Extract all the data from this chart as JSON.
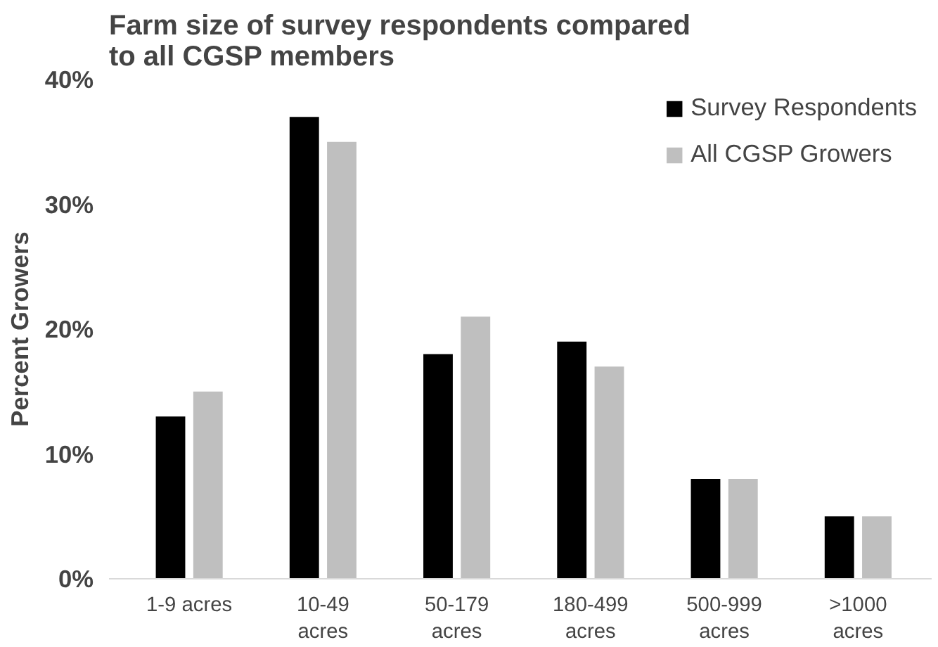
{
  "chart_data": {
    "type": "bar",
    "title": "Farm size of survey respondents compared to all CGSP members",
    "ylabel": "Percent Growers",
    "categories": [
      "1-9 acres",
      "10-49 acres",
      "50-179 acres",
      "180-499 acres",
      "500-999 acres",
      ">1000 acres"
    ],
    "series": [
      {
        "name": "Survey Respondents",
        "color": "#000000",
        "values": [
          13,
          37,
          18,
          19,
          8,
          5
        ]
      },
      {
        "name": "All CGSP Growers",
        "color": "#bfbfbf",
        "values": [
          15,
          35,
          21,
          17,
          8,
          5
        ]
      }
    ],
    "ylim": [
      0,
      40
    ],
    "yticks": [
      {
        "value": 0,
        "label": "0%"
      },
      {
        "value": 10,
        "label": "10%"
      },
      {
        "value": 20,
        "label": "20%"
      },
      {
        "value": 30,
        "label": "30%"
      },
      {
        "value": 40,
        "label": "40%"
      }
    ],
    "grid": false,
    "legend": "top right"
  }
}
